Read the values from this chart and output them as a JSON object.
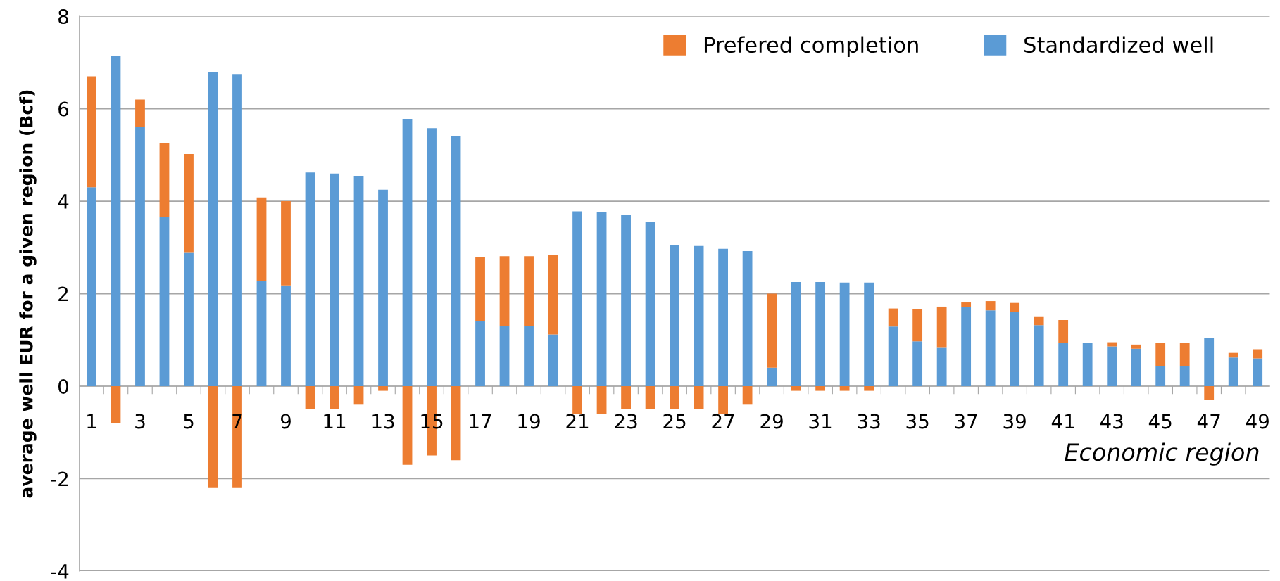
{
  "chart_data": {
    "type": "bar",
    "stacked": true,
    "xlabel": "Economic region",
    "ylabel": "average well EUR for a given region (Bcf)",
    "categories": [
      "1",
      null,
      "3",
      null,
      "5",
      null,
      "7",
      null,
      "9",
      null,
      "11",
      null,
      "13",
      null,
      "15",
      null,
      "17",
      null,
      "19",
      null,
      "21",
      null,
      "23",
      null,
      "25",
      null,
      "27",
      null,
      "29",
      null,
      "31",
      null,
      "33",
      null,
      "35",
      null,
      "37",
      null,
      "39",
      null,
      "41",
      null,
      "43",
      null,
      "45",
      null,
      "47",
      null,
      "49"
    ],
    "series": [
      {
        "name": "Standardized well",
        "color": "#5b9bd5",
        "values": [
          4.3,
          7.15,
          5.6,
          3.65,
          2.9,
          6.8,
          6.75,
          2.28,
          2.18,
          4.62,
          4.6,
          4.55,
          4.25,
          5.78,
          5.58,
          5.4,
          1.4,
          1.3,
          1.3,
          1.12,
          3.78,
          3.77,
          3.7,
          3.55,
          3.05,
          3.03,
          2.97,
          2.92,
          0.4,
          2.25,
          2.25,
          2.24,
          2.24,
          1.29,
          0.97,
          0.83,
          1.71,
          1.64,
          1.6,
          1.32,
          0.93,
          0.94,
          0.86,
          0.81,
          0.44,
          0.44,
          1.05,
          0.62,
          0.6
        ]
      },
      {
        "name": "Prefered completion",
        "color": "#ed7d31",
        "values": [
          2.4,
          -0.8,
          0.6,
          1.6,
          2.12,
          -2.2,
          -2.2,
          1.8,
          1.82,
          -0.5,
          -0.5,
          -0.4,
          -0.1,
          -1.7,
          -1.5,
          -1.6,
          1.4,
          1.51,
          1.51,
          1.71,
          -0.6,
          -0.6,
          -0.5,
          -0.5,
          -0.5,
          -0.5,
          -0.6,
          -0.4,
          1.6,
          -0.1,
          -0.1,
          -0.1,
          -0.1,
          0.39,
          0.69,
          0.89,
          0.1,
          0.2,
          0.2,
          0.19,
          0.5,
          null,
          0.09,
          0.09,
          0.5,
          0.5,
          -0.3,
          0.1,
          0.2
        ]
      }
    ],
    "ylim": [
      -4,
      8
    ],
    "yticks": [
      -4,
      -2,
      0,
      2,
      4,
      6,
      8
    ],
    "grid": "y",
    "legend": "top right"
  }
}
